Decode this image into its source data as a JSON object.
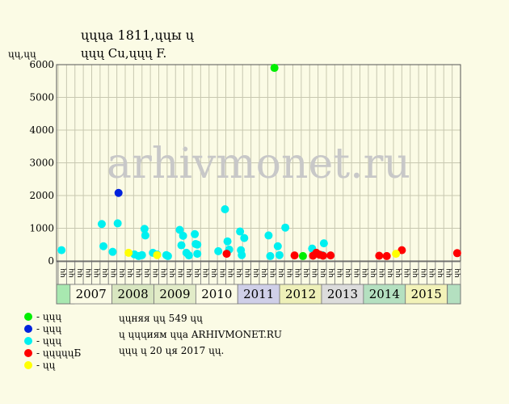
{
  "chart_data": {
    "type": "scatter",
    "title_line1": "ųųųа 1811,ųųы ų",
    "title_line2": "ųųų Cu,ųųų F.",
    "ylabel": "ųų,ųų",
    "watermark": "arhivmonet.ru",
    "ylim": [
      0,
      6000
    ],
    "yticks": [
      0,
      1000,
      2000,
      3000,
      4000,
      5000,
      6000
    ],
    "years": [
      "2007",
      "2008",
      "2009",
      "2010",
      "2011",
      "2012",
      "2013",
      "2014",
      "2015"
    ],
    "year_colors": [
      "#fbfbe5",
      "#d8e6c0",
      "#e2ecc8",
      "#fbfbe5",
      "#cfcfe8",
      "#eef0b8",
      "#dcdcdc",
      "#b4e0c0",
      "#f2f2b8"
    ],
    "half_labels": [
      "ųų",
      "ųų",
      "ųų",
      "ųų",
      "ųų",
      "ųų",
      "ųų",
      "ųų",
      "ųų",
      "ųų",
      "ųų",
      "ųų",
      "ųų",
      "ųų",
      "ųų",
      "ųų",
      "ųų",
      "ųų",
      "ųų",
      "ųų",
      "ųų",
      "ųų",
      "ųų",
      "ųų",
      "ųų",
      "ųų",
      "ųų",
      "ųų",
      "ųų",
      "ųų",
      "ųų",
      "ųų",
      "ųų",
      "ųų",
      "ųų",
      "ųų",
      "ųų",
      "ųų",
      "ųų",
      "ųų",
      "ųų",
      "ųų",
      "ųų",
      "ųų",
      "ųų",
      "ųų",
      "ųų",
      "ųų"
    ],
    "series": [
      {
        "name": "ųųų",
        "color": "#00ee00",
        "points": [
          [
            25.8,
            5900
          ],
          [
            29.2,
            150
          ]
        ]
      },
      {
        "name": "ųųų",
        "color": "#0022dd",
        "points": [
          [
            7.2,
            2080
          ]
        ]
      },
      {
        "name": "ųųų",
        "color": "#00f0f0",
        "points": [
          [
            0.4,
            330
          ],
          [
            5.2,
            1130
          ],
          [
            5.4,
            450
          ],
          [
            6.5,
            280
          ],
          [
            7.1,
            1150
          ],
          [
            9.1,
            200
          ],
          [
            9.6,
            150
          ],
          [
            10.0,
            180
          ],
          [
            10.3,
            980
          ],
          [
            10.4,
            780
          ],
          [
            11.3,
            250
          ],
          [
            11.8,
            200
          ],
          [
            12.9,
            180
          ],
          [
            13.1,
            150
          ],
          [
            14.5,
            950
          ],
          [
            14.7,
            480
          ],
          [
            14.9,
            770
          ],
          [
            15.3,
            250
          ],
          [
            15.6,
            170
          ],
          [
            16.3,
            820
          ],
          [
            16.4,
            520
          ],
          [
            16.6,
            500
          ],
          [
            16.6,
            220
          ],
          [
            19.1,
            300
          ],
          [
            19.9,
            1580
          ],
          [
            20.2,
            600
          ],
          [
            20.4,
            350
          ],
          [
            21.7,
            900
          ],
          [
            21.8,
            330
          ],
          [
            21.9,
            180
          ],
          [
            22.2,
            700
          ],
          [
            25.1,
            780
          ],
          [
            25.3,
            150
          ],
          [
            26.2,
            450
          ],
          [
            26.4,
            180
          ],
          [
            27.1,
            1020
          ],
          [
            30.3,
            380
          ],
          [
            31.7,
            540
          ],
          [
            31.5,
            180
          ]
        ]
      },
      {
        "name": "ųųųųųБ",
        "color": "#ff0000",
        "points": [
          [
            20.1,
            220
          ],
          [
            28.2,
            170
          ],
          [
            30.4,
            160
          ],
          [
            30.8,
            250
          ],
          [
            31.2,
            190
          ],
          [
            31.6,
            160
          ],
          [
            32.5,
            170
          ],
          [
            38.3,
            160
          ],
          [
            39.2,
            150
          ],
          [
            41.0,
            330
          ],
          [
            47.6,
            240
          ]
        ]
      },
      {
        "name": "ųų",
        "color": "#ffff00",
        "points": [
          [
            8.4,
            250
          ],
          [
            11.8,
            180
          ],
          [
            40.3,
            220
          ]
        ]
      }
    ],
    "legend": [
      {
        "label": "- ųųų",
        "color": "#00ee00"
      },
      {
        "label": "- ųųų",
        "color": "#0022dd"
      },
      {
        "label": "- ųųų",
        "color": "#00f0f0"
      },
      {
        "label": "- ųųųųųБ",
        "color": "#ff0000"
      },
      {
        "label": "- ųų",
        "color": "#ffff00"
      }
    ],
    "notes": [
      "ųųняя ųų 549 ųų",
      "ų ųųųиям ųųа ARHIVMONET.RU",
      "ųųų ų 20 ųя 2017 ųų."
    ]
  }
}
